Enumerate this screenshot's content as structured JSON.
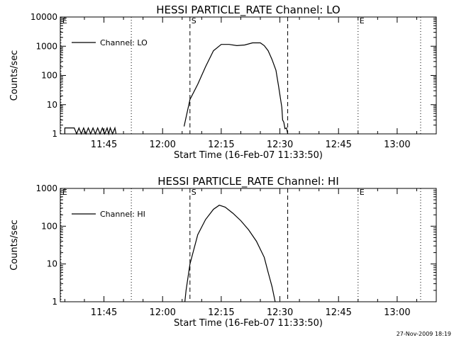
{
  "footer_stamp": "27-Nov-2009 18:19",
  "chart_data": [
    {
      "type": "line",
      "title": "HESSI PARTICLE_RATE Channel: LO",
      "xlabel": "Start Time (16-Feb-07 11:33:50)",
      "ylabel": "Counts/sec",
      "yscale": "log",
      "ylim": [
        1,
        10000
      ],
      "xlim": [
        "11:33:50",
        "13:10:00"
      ],
      "yticks": [
        "1",
        "10",
        "100",
        "1000",
        "10000"
      ],
      "xticks": [
        "11:45",
        "12:00",
        "12:15",
        "12:30",
        "12:45",
        "13:00"
      ],
      "markers": [
        {
          "label": "E",
          "time": "11:34",
          "style": "dotted"
        },
        {
          "label": "",
          "time": "11:52",
          "style": "dotted"
        },
        {
          "label": "S",
          "time": "12:07",
          "style": "dashed"
        },
        {
          "label": "",
          "time": "12:32",
          "style": "dashed"
        },
        {
          "label": "E",
          "time": "12:50",
          "style": "dotted"
        },
        {
          "label": "",
          "time": "13:06",
          "style": "dotted"
        }
      ],
      "legend": "top-left",
      "series": [
        {
          "name": "Channel: LO",
          "segments": [
            [
              [
                "11:35",
                1
              ],
              [
                "11:35",
                1.6
              ],
              [
                "11:37.4",
                1.6
              ],
              [
                "11:38",
                1
              ],
              [
                "11:38.6",
                1.6
              ],
              [
                "11:39.2",
                1
              ],
              [
                "11:39.8",
                1.6
              ],
              [
                "11:40.4",
                1
              ],
              [
                "11:41",
                1.6
              ],
              [
                "11:41.6",
                1
              ],
              [
                "11:42.2",
                1.6
              ],
              [
                "11:42.8",
                1
              ],
              [
                "11:43.4",
                1.6
              ],
              [
                "11:44",
                1
              ],
              [
                "11:44.6",
                1.6
              ],
              [
                "11:45.2",
                1
              ],
              [
                "11:45.8",
                1.6
              ],
              [
                "11:46.2",
                1
              ],
              [
                "11:46.6",
                1.6
              ],
              [
                "11:47.2",
                1
              ],
              [
                "11:47.8",
                1.6
              ],
              [
                "11:48.1",
                1
              ]
            ],
            [
              [
                "12:05.5",
                1.8
              ],
              [
                "12:07",
                15
              ],
              [
                "12:09",
                50
              ],
              [
                "12:11",
                200
              ],
              [
                "12:13",
                700
              ],
              [
                "12:15",
                1150
              ],
              [
                "12:17",
                1150
              ],
              [
                "12:19",
                1050
              ],
              [
                "12:21",
                1100
              ],
              [
                "12:23",
                1300
              ],
              [
                "12:25",
                1300
              ],
              [
                "12:26",
                1050
              ],
              [
                "12:27",
                700
              ],
              [
                "12:28",
                350
              ],
              [
                "12:29",
                150
              ],
              [
                "12:29.7",
                40
              ],
              [
                "12:30.5",
                8
              ],
              [
                "12:30.7",
                3
              ],
              [
                "12:31",
                2.5
              ],
              [
                "12:31.3",
                1.5
              ],
              [
                "12:31.7",
                1.6
              ],
              [
                "12:32",
                1
              ]
            ]
          ]
        }
      ]
    },
    {
      "type": "line",
      "title": "HESSI PARTICLE_RATE Channel: HI",
      "xlabel": "Start Time (16-Feb-07 11:33:50)",
      "ylabel": "Counts/sec",
      "yscale": "log",
      "ylim": [
        1,
        1000
      ],
      "xlim": [
        "11:33:50",
        "13:10:00"
      ],
      "yticks": [
        "1",
        "10",
        "100",
        "1000"
      ],
      "xticks": [
        "11:45",
        "12:00",
        "12:15",
        "12:30",
        "12:45",
        "13:00"
      ],
      "markers": [
        {
          "label": "E",
          "time": "11:34",
          "style": "dotted"
        },
        {
          "label": "",
          "time": "11:52",
          "style": "dotted"
        },
        {
          "label": "S",
          "time": "12:07",
          "style": "dashed"
        },
        {
          "label": "",
          "time": "12:32",
          "style": "dashed"
        },
        {
          "label": "E",
          "time": "12:50",
          "style": "dotted"
        },
        {
          "label": "",
          "time": "13:06",
          "style": "dotted"
        }
      ],
      "legend": "top-left",
      "series": [
        {
          "name": "Channel: HI",
          "segments": [
            [
              [
                "12:05.7",
                1
              ],
              [
                "12:06",
                2
              ],
              [
                "12:07",
                10
              ],
              [
                "12:09",
                60
              ],
              [
                "12:11",
                150
              ],
              [
                "12:13",
                280
              ],
              [
                "12:14.5",
                360
              ],
              [
                "12:16",
                320
              ],
              [
                "12:18",
                220
              ],
              [
                "12:20",
                140
              ],
              [
                "12:22",
                80
              ],
              [
                "12:24",
                40
              ],
              [
                "12:26",
                15
              ],
              [
                "12:27",
                6
              ],
              [
                "12:28",
                2.5
              ],
              [
                "12:28.8",
                1
              ]
            ]
          ]
        }
      ]
    }
  ]
}
